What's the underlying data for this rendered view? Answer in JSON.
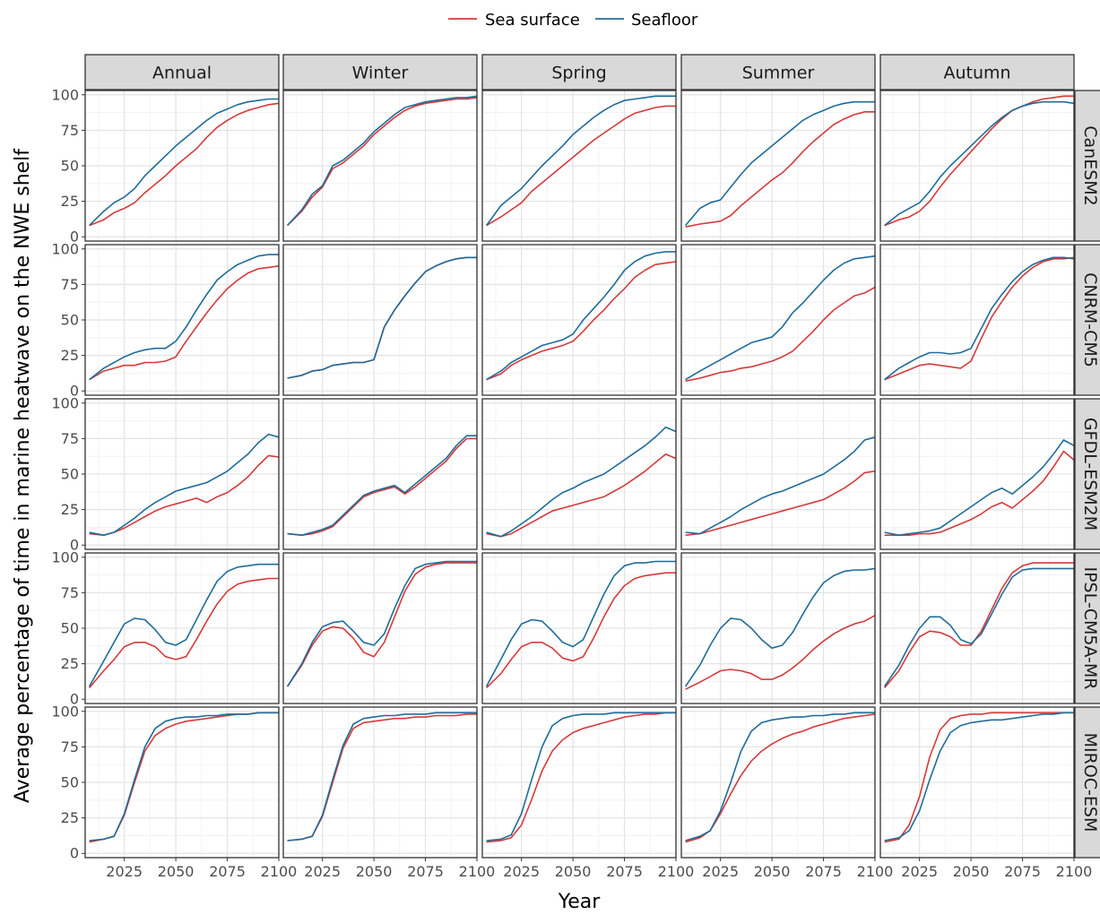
{
  "chart_data": {
    "type": "line",
    "title": "",
    "xlabel": "Year",
    "ylabel": "Average percentage of time in marine heatwave on the NWE shelf",
    "xlim": [
      2006,
      2100
    ],
    "ylim": [
      -3,
      103
    ],
    "x_ticks": [
      2025,
      2050,
      2075,
      2100
    ],
    "y_ticks": [
      0,
      25,
      50,
      75,
      100
    ],
    "x_tick_labels": [
      "2025",
      "2050",
      "2075",
      "2100"
    ],
    "y_tick_labels": [
      "0",
      "25",
      "50",
      "75",
      "100"
    ],
    "grid": true,
    "legend": {
      "position": "top",
      "entries": [
        {
          "name": "Sea surface",
          "color": "#d63a3a"
        },
        {
          "name": "Seafloor",
          "color": "#1f6c9a"
        }
      ]
    },
    "columns": [
      "Annual",
      "Winter",
      "Spring",
      "Summer",
      "Autumn"
    ],
    "rows": [
      "CanESM2",
      "CNRM-CM5",
      "GFDL-ESM2M",
      "IPSL-CM5A-MR",
      "MIROC-ESM"
    ],
    "x": [
      2008,
      2015,
      2020,
      2025,
      2030,
      2035,
      2040,
      2045,
      2050,
      2055,
      2060,
      2065,
      2070,
      2075,
      2080,
      2085,
      2090,
      2095,
      2100
    ],
    "panels": [
      {
        "row": "CanESM2",
        "col": "Annual",
        "sea_surface": [
          8,
          12,
          17,
          20,
          24,
          31,
          37,
          43,
          50,
          56,
          62,
          70,
          77,
          82,
          86,
          89,
          91,
          93,
          94
        ],
        "seafloor": [
          8,
          18,
          24,
          28,
          34,
          43,
          50,
          57,
          64,
          70,
          76,
          82,
          87,
          90,
          93,
          95,
          96,
          97,
          97
        ]
      },
      {
        "row": "CanESM2",
        "col": "Winter",
        "sea_surface": [
          8,
          18,
          28,
          35,
          48,
          52,
          58,
          64,
          72,
          78,
          84,
          89,
          92,
          94,
          95,
          96,
          97,
          97,
          98
        ],
        "seafloor": [
          8,
          19,
          30,
          36,
          50,
          54,
          60,
          66,
          74,
          80,
          86,
          91,
          93,
          95,
          96,
          97,
          98,
          98,
          99
        ]
      },
      {
        "row": "CanESM2",
        "col": "Spring",
        "sea_surface": [
          8,
          14,
          19,
          24,
          32,
          38,
          44,
          50,
          56,
          62,
          68,
          73,
          78,
          83,
          87,
          89,
          91,
          92,
          92
        ],
        "seafloor": [
          8,
          22,
          28,
          34,
          42,
          50,
          57,
          64,
          72,
          78,
          84,
          89,
          93,
          96,
          97,
          98,
          99,
          99,
          99
        ]
      },
      {
        "row": "CanESM2",
        "col": "Summer",
        "sea_surface": [
          7,
          9,
          10,
          11,
          15,
          22,
          28,
          34,
          40,
          45,
          52,
          60,
          67,
          73,
          79,
          83,
          86,
          88,
          88
        ],
        "seafloor": [
          8,
          20,
          24,
          26,
          35,
          44,
          52,
          58,
          64,
          70,
          76,
          82,
          86,
          89,
          92,
          94,
          95,
          95,
          95
        ]
      },
      {
        "row": "CanESM2",
        "col": "Autumn",
        "sea_surface": [
          8,
          12,
          14,
          18,
          25,
          35,
          44,
          52,
          60,
          68,
          76,
          83,
          89,
          92,
          95,
          97,
          98,
          99,
          99
        ],
        "seafloor": [
          8,
          16,
          20,
          24,
          32,
          42,
          50,
          57,
          64,
          71,
          78,
          84,
          89,
          92,
          94,
          95,
          95,
          95,
          94
        ]
      },
      {
        "row": "CNRM-CM5",
        "col": "Annual",
        "sea_surface": [
          8,
          14,
          16,
          18,
          18,
          20,
          20,
          21,
          24,
          35,
          45,
          55,
          64,
          72,
          78,
          83,
          86,
          87,
          88
        ],
        "seafloor": [
          8,
          16,
          20,
          24,
          27,
          29,
          30,
          30,
          35,
          45,
          57,
          68,
          78,
          84,
          89,
          92,
          95,
          96,
          96
        ]
      },
      {
        "row": "CNRM-CM5",
        "col": "Winter",
        "sea_surface": [
          9,
          11,
          14,
          15,
          18,
          19,
          20,
          20,
          22,
          45,
          57,
          67,
          76,
          84,
          88,
          91,
          93,
          94,
          94
        ]
      },
      {
        "row": "CNRM-CM5",
        "col": "Spring",
        "sea_surface": [
          8,
          12,
          18,
          22,
          25,
          28,
          30,
          32,
          35,
          42,
          50,
          57,
          65,
          72,
          80,
          85,
          89,
          90,
          91
        ],
        "seafloor": [
          8,
          14,
          20,
          24,
          28,
          32,
          34,
          36,
          40,
          50,
          58,
          66,
          75,
          85,
          91,
          95,
          97,
          98,
          98
        ]
      },
      {
        "row": "CNRM-CM5",
        "col": "Summer",
        "sea_surface": [
          7,
          9,
          11,
          13,
          14,
          16,
          17,
          19,
          21,
          24,
          28,
          35,
          42,
          50,
          57,
          62,
          67,
          69,
          73
        ],
        "seafloor": [
          8,
          14,
          18,
          22,
          26,
          30,
          34,
          36,
          38,
          45,
          55,
          62,
          70,
          78,
          85,
          90,
          93,
          94,
          95
        ]
      },
      {
        "row": "CNRM-CM5",
        "col": "Autumn",
        "sea_surface": [
          8,
          12,
          15,
          18,
          19,
          18,
          17,
          16,
          21,
          37,
          52,
          63,
          73,
          81,
          87,
          91,
          93,
          93,
          94
        ],
        "seafloor": [
          8,
          16,
          20,
          24,
          27,
          27,
          26,
          27,
          30,
          44,
          58,
          68,
          77,
          84,
          89,
          92,
          94,
          94,
          93
        ]
      },
      {
        "row": "GFDL-ESM2M",
        "col": "Annual",
        "sea_surface": [
          8,
          7,
          9,
          12,
          16,
          20,
          24,
          27,
          29,
          31,
          33,
          30,
          34,
          37,
          42,
          48,
          56,
          63,
          62
        ],
        "seafloor": [
          9,
          7,
          9,
          14,
          19,
          25,
          30,
          34,
          38,
          40,
          42,
          44,
          48,
          52,
          58,
          64,
          72,
          78,
          76
        ]
      },
      {
        "row": "GFDL-ESM2M",
        "col": "Winter",
        "sea_surface": [
          8,
          7,
          8,
          10,
          13,
          20,
          27,
          34,
          37,
          39,
          41,
          36,
          41,
          47,
          53,
          59,
          68,
          75,
          75
        ],
        "seafloor": [
          8,
          7,
          9,
          11,
          14,
          21,
          28,
          35,
          38,
          40,
          42,
          37,
          43,
          49,
          55,
          61,
          70,
          77,
          77
        ]
      },
      {
        "row": "GFDL-ESM2M",
        "col": "Spring",
        "sea_surface": [
          8,
          6,
          8,
          12,
          16,
          20,
          24,
          26,
          28,
          30,
          32,
          34,
          38,
          42,
          47,
          52,
          58,
          64,
          61
        ],
        "seafloor": [
          9,
          6,
          10,
          15,
          20,
          26,
          32,
          37,
          40,
          44,
          47,
          50,
          55,
          60,
          65,
          70,
          76,
          83,
          80
        ]
      },
      {
        "row": "GFDL-ESM2M",
        "col": "Summer",
        "sea_surface": [
          7,
          8,
          10,
          12,
          14,
          16,
          18,
          20,
          22,
          24,
          26,
          28,
          30,
          32,
          36,
          40,
          45,
          51,
          52
        ],
        "seafloor": [
          9,
          8,
          12,
          16,
          20,
          25,
          29,
          33,
          36,
          38,
          41,
          44,
          47,
          50,
          55,
          60,
          66,
          74,
          76
        ]
      },
      {
        "row": "GFDL-ESM2M",
        "col": "Autumn",
        "sea_surface": [
          7,
          7,
          7,
          8,
          8,
          9,
          12,
          15,
          18,
          22,
          27,
          30,
          26,
          32,
          38,
          45,
          55,
          66,
          60
        ],
        "seafloor": [
          9,
          7,
          8,
          9,
          10,
          12,
          17,
          22,
          27,
          32,
          37,
          40,
          36,
          42,
          48,
          55,
          64,
          74,
          70
        ]
      },
      {
        "row": "IPSL-CM5A-MR",
        "col": "Annual",
        "sea_surface": [
          8,
          20,
          28,
          37,
          40,
          40,
          37,
          30,
          28,
          30,
          42,
          55,
          67,
          76,
          81,
          83,
          84,
          85,
          85
        ],
        "seafloor": [
          9,
          27,
          40,
          53,
          57,
          56,
          49,
          40,
          38,
          42,
          56,
          70,
          83,
          90,
          93,
          94,
          95,
          95,
          95
        ]
      },
      {
        "row": "IPSL-CM5A-MR",
        "col": "Winter",
        "sea_surface": [
          9,
          24,
          38,
          48,
          51,
          50,
          43,
          33,
          30,
          40,
          58,
          76,
          88,
          93,
          95,
          96,
          96,
          96,
          96
        ],
        "seafloor": [
          9,
          25,
          40,
          51,
          54,
          55,
          48,
          40,
          38,
          46,
          64,
          80,
          92,
          95,
          96,
          97,
          97,
          97,
          97
        ]
      },
      {
        "row": "IPSL-CM5A-MR",
        "col": "Spring",
        "sea_surface": [
          8,
          18,
          28,
          37,
          40,
          40,
          36,
          29,
          27,
          30,
          43,
          58,
          71,
          80,
          85,
          87,
          88,
          89,
          89
        ],
        "seafloor": [
          9,
          28,
          42,
          53,
          56,
          55,
          48,
          40,
          37,
          42,
          58,
          74,
          87,
          94,
          96,
          96,
          97,
          97,
          97
        ]
      },
      {
        "row": "IPSL-CM5A-MR",
        "col": "Summer",
        "sea_surface": [
          7,
          12,
          16,
          20,
          21,
          20,
          18,
          14,
          14,
          17,
          22,
          28,
          35,
          41,
          46,
          50,
          53,
          55,
          59
        ],
        "seafloor": [
          9,
          24,
          38,
          50,
          57,
          56,
          50,
          42,
          36,
          38,
          47,
          60,
          72,
          82,
          87,
          90,
          91,
          91,
          92
        ]
      },
      {
        "row": "IPSL-CM5A-MR",
        "col": "Autumn",
        "sea_surface": [
          8,
          20,
          33,
          44,
          48,
          47,
          44,
          38,
          38,
          48,
          63,
          78,
          89,
          94,
          96,
          96,
          96,
          96,
          96
        ],
        "seafloor": [
          9,
          24,
          38,
          50,
          58,
          58,
          52,
          42,
          39,
          46,
          60,
          74,
          86,
          91,
          92,
          92,
          92,
          92,
          92
        ]
      },
      {
        "row": "MIROC-ESM",
        "col": "Annual",
        "sea_surface": [
          8,
          10,
          12,
          27,
          50,
          72,
          83,
          88,
          91,
          93,
          94,
          95,
          96,
          97,
          98,
          98,
          99,
          99,
          99
        ],
        "seafloor": [
          9,
          10,
          12,
          28,
          52,
          75,
          88,
          93,
          95,
          96,
          96,
          97,
          97,
          98,
          98,
          98,
          99,
          99,
          99
        ]
      },
      {
        "row": "MIROC-ESM",
        "col": "Winter",
        "sea_surface": [
          9,
          10,
          12,
          26,
          50,
          74,
          88,
          92,
          93,
          94,
          95,
          95,
          96,
          96,
          97,
          97,
          97,
          98,
          98
        ],
        "seafloor": [
          9,
          10,
          12,
          27,
          52,
          76,
          91,
          95,
          96,
          97,
          97,
          98,
          98,
          98,
          99,
          99,
          99,
          99,
          99
        ]
      },
      {
        "row": "MIROC-ESM",
        "col": "Spring",
        "sea_surface": [
          8,
          9,
          11,
          20,
          38,
          58,
          72,
          80,
          85,
          88,
          90,
          92,
          94,
          96,
          97,
          98,
          98,
          99,
          99
        ],
        "seafloor": [
          9,
          10,
          13,
          28,
          52,
          75,
          90,
          95,
          97,
          98,
          98,
          98,
          99,
          99,
          99,
          99,
          99,
          99,
          99
        ]
      },
      {
        "row": "MIROC-ESM",
        "col": "Summer",
        "sea_surface": [
          8,
          11,
          16,
          28,
          42,
          55,
          65,
          72,
          77,
          81,
          84,
          86,
          89,
          91,
          93,
          95,
          96,
          97,
          98
        ],
        "seafloor": [
          9,
          12,
          16,
          30,
          50,
          72,
          86,
          92,
          94,
          95,
          96,
          96,
          97,
          97,
          98,
          98,
          99,
          99,
          99
        ]
      },
      {
        "row": "MIROC-ESM",
        "col": "Autumn",
        "sea_surface": [
          8,
          10,
          20,
          40,
          68,
          87,
          95,
          97,
          98,
          98,
          99,
          99,
          99,
          99,
          99,
          99,
          99,
          99,
          99
        ],
        "seafloor": [
          9,
          11,
          16,
          30,
          52,
          72,
          85,
          90,
          92,
          93,
          94,
          94,
          95,
          96,
          97,
          98,
          98,
          99,
          99
        ]
      }
    ]
  }
}
